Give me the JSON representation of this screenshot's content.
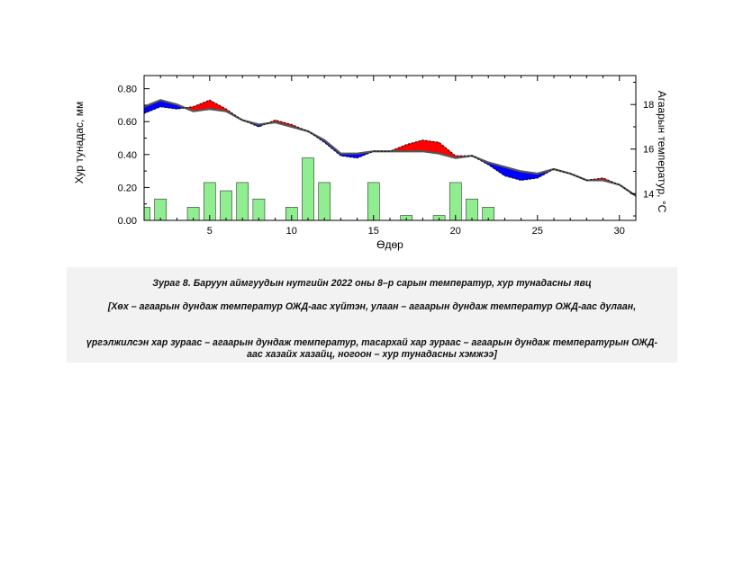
{
  "chart_data": {
    "type": "area",
    "xlabel": "Өдөр",
    "ylabel_left": "Хур тунадас, мм",
    "ylabel_right": "Агаарын температур, °С",
    "x_ticks": [
      5,
      10,
      15,
      20,
      25,
      30
    ],
    "y_left_ticks": [
      "0.00",
      "0.20",
      "0.40",
      "0.60",
      "0.80"
    ],
    "y_right_ticks": [
      14,
      16,
      18
    ],
    "xlim": [
      1,
      31
    ],
    "ylim_left": [
      0,
      0.88
    ],
    "ylim_right": [
      12.8,
      19.3
    ],
    "grid": false,
    "days": [
      1,
      2,
      3,
      4,
      5,
      6,
      7,
      8,
      9,
      10,
      11,
      12,
      13,
      14,
      15,
      16,
      17,
      18,
      19,
      20,
      21,
      22,
      23,
      24,
      25,
      26,
      27,
      28,
      29,
      30,
      31
    ],
    "series": [
      {
        "name": "агаарын дундаж температур",
        "style": "solid",
        "color": "#555555",
        "values": [
          17.9,
          18.2,
          18.0,
          17.7,
          17.8,
          17.7,
          17.3,
          17.1,
          17.2,
          17.0,
          16.8,
          16.4,
          15.8,
          15.8,
          15.9,
          15.9,
          15.9,
          15.9,
          15.8,
          15.6,
          15.7,
          15.4,
          15.2,
          15.0,
          14.9,
          15.1,
          14.9,
          14.6,
          14.6,
          14.4,
          13.9
        ]
      },
      {
        "name": "агаарын дундаж температурын ОЖД",
        "style": "dashed",
        "color": "#111111",
        "values": [
          17.6,
          17.9,
          17.8,
          17.9,
          18.2,
          17.8,
          17.3,
          17.0,
          17.3,
          17.1,
          16.8,
          16.3,
          15.7,
          15.6,
          15.9,
          15.9,
          16.2,
          16.4,
          16.3,
          15.7,
          15.7,
          15.3,
          14.8,
          14.6,
          14.7,
          15.1,
          14.9,
          14.6,
          14.7,
          14.4,
          13.9
        ]
      }
    ],
    "precipitation": {
      "name": "хур тунадасны хэмжээ",
      "color": "#90ee90",
      "values": [
        0.08,
        0.13,
        0,
        0.08,
        0.23,
        0.18,
        0.23,
        0.13,
        0,
        0.08,
        0.38,
        0.23,
        0,
        0,
        0.23,
        0,
        0.03,
        0,
        0.03,
        0.23,
        0.13,
        0.08,
        0,
        0,
        0,
        0,
        0,
        0,
        0,
        0,
        0
      ]
    },
    "fill_colors": {
      "warmer": "#ff0000",
      "colder": "#0000ff"
    }
  },
  "caption": {
    "title": "Зураг 8. Баруун аймгуудын нутгийн 2022 оны 8–р сарын температур, хур тунадасны явц",
    "note1": "[Хөх – агаарын дундаж температур ОЖД-аас хүйтэн, улаан – агаарын дундаж температур ОЖД-аас дулаан,",
    "note2": "үргэлжилсэн хар зураас – агаарын дундаж температур, тасархай хар зураас – агаарын дундаж температурын ОЖД-аас хазайх хазайц, ногоон – хур тунадасны хэмжээ]"
  }
}
